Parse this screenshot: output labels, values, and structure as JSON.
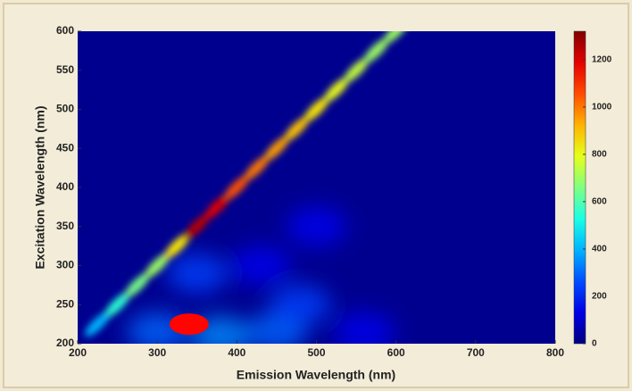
{
  "chart_data": {
    "type": "heatmap",
    "x_label": "Emission Wavelength (nm)",
    "y_label": "Excitation Wavelength (nm)",
    "xlim": [
      200,
      800
    ],
    "ylim": [
      200,
      600
    ],
    "xticks": [
      200,
      300,
      400,
      500,
      600,
      700,
      800
    ],
    "yticks": [
      200,
      250,
      300,
      350,
      400,
      450,
      500,
      550,
      600
    ],
    "clim": [
      0,
      1320
    ],
    "cticks": [
      0,
      200,
      400,
      600,
      800,
      1000,
      1200
    ],
    "colormap": "jet",
    "ridge": {
      "x": [
        225,
        250,
        275,
        300,
        325,
        350,
        375,
        400,
        425,
        450,
        475,
        500,
        525,
        550,
        575,
        600
      ],
      "y": [
        225,
        250,
        275,
        300,
        325,
        350,
        375,
        400,
        425,
        450,
        475,
        500,
        525,
        550,
        575,
        600
      ],
      "values": [
        400,
        550,
        650,
        700,
        850,
        1250,
        1200,
        1050,
        1000,
        950,
        900,
        850,
        800,
        750,
        700,
        700
      ]
    },
    "peaks": {
      "x": [
        340,
        380,
        300,
        450,
        560,
        480,
        350,
        430,
        500
      ],
      "y": [
        225,
        210,
        215,
        215,
        215,
        250,
        290,
        300,
        350
      ],
      "values": [
        1150,
        350,
        300,
        300,
        150,
        250,
        250,
        150,
        150
      ]
    }
  }
}
